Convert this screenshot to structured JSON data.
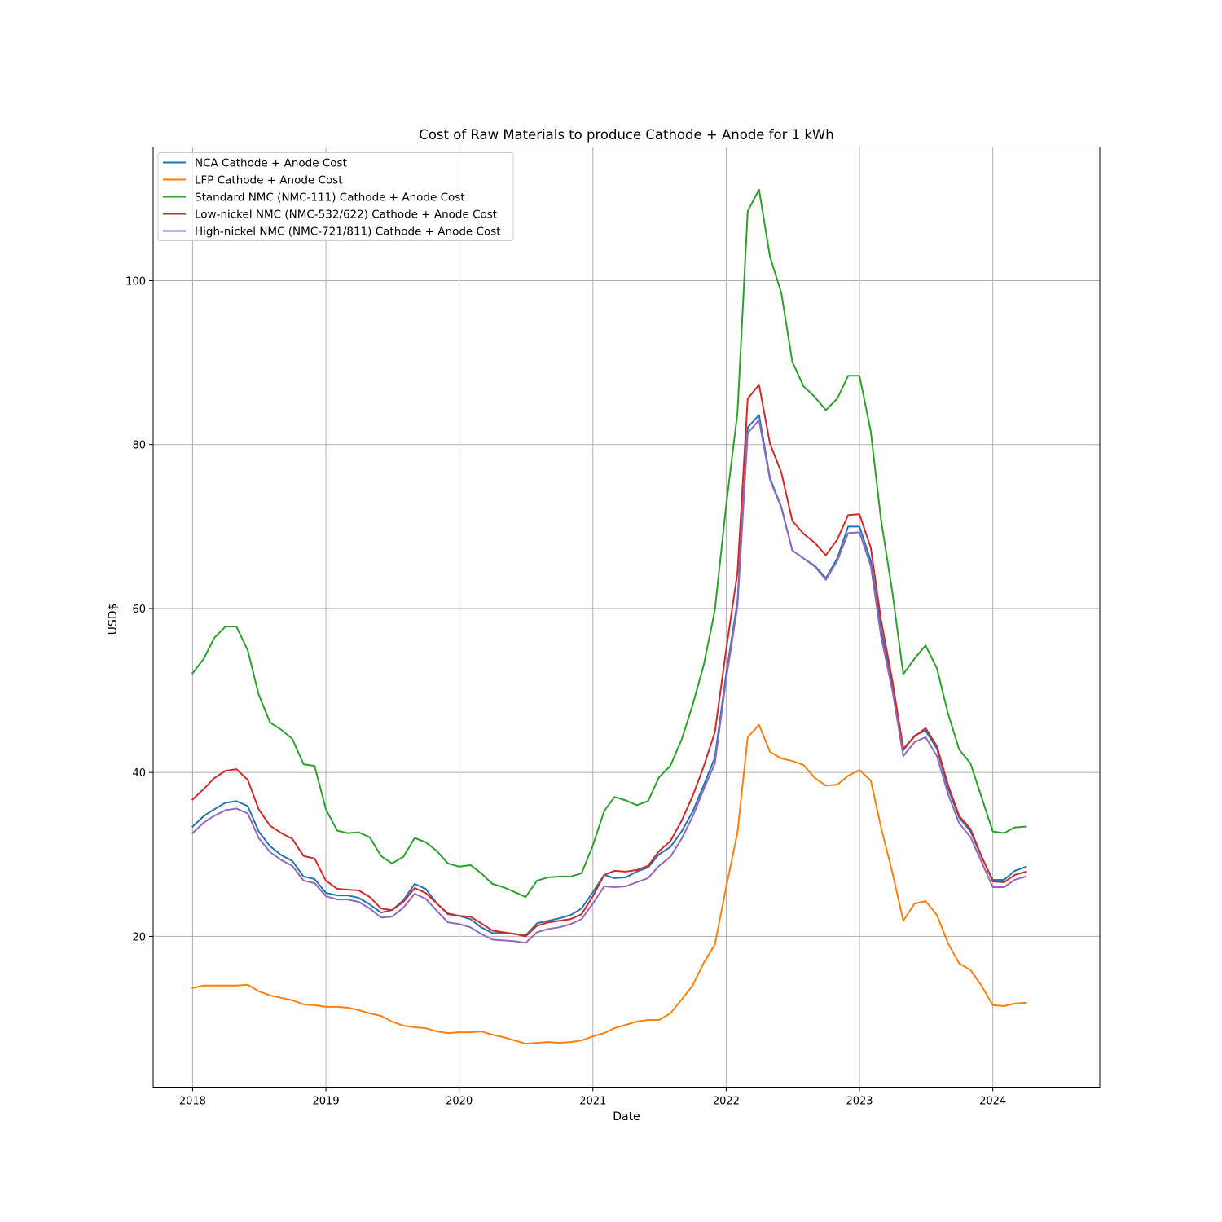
{
  "chart_data": {
    "type": "line",
    "title": "Cost of Raw Materials to produce Cathode + Anode for 1 kWh",
    "xlabel": "Date",
    "ylabel": "USD$",
    "x_start": "2018-01",
    "x_step": "1 month",
    "x_ticks": [
      "2018",
      "2019",
      "2020",
      "2021",
      "2022",
      "2023",
      "2024"
    ],
    "xlim": [
      "2017-09-15",
      "2024-10-20"
    ],
    "y_ticks": [
      20,
      40,
      60,
      80,
      100
    ],
    "ylim": [
      1.6,
      116.3
    ],
    "grid": true,
    "legend_position": "upper left",
    "series": [
      {
        "name": "NCA Cathode + Anode Cost",
        "color": "#1f77b4",
        "values": [
          33.4,
          34.7,
          35.5,
          36.3,
          36.5,
          35.9,
          32.8,
          31.0,
          29.9,
          29.2,
          27.3,
          27.0,
          25.3,
          25.0,
          25.0,
          24.7,
          23.9,
          22.9,
          23.2,
          24.4,
          26.4,
          25.8,
          24.0,
          22.7,
          22.5,
          22.1,
          21.1,
          20.4,
          20.4,
          20.3,
          20.1,
          21.6,
          21.9,
          22.2,
          22.6,
          23.4,
          25.4,
          27.5,
          27.1,
          27.2,
          27.9,
          28.4,
          30.0,
          30.9,
          32.8,
          35.2,
          38.5,
          41.8,
          52.0,
          60.9,
          82.1,
          83.6,
          75.9,
          72.4,
          67.1,
          66.1,
          65.2,
          63.7,
          66.1,
          70.0,
          70.0,
          65.8,
          57.4,
          50.5,
          42.7,
          44.5,
          45.1,
          42.9,
          38.0,
          34.5,
          32.8,
          29.7,
          26.9,
          26.9,
          28.0,
          28.5
        ]
      },
      {
        "name": "LFP Cathode + Anode Cost",
        "color": "#ff7f0e",
        "values": [
          13.7,
          14.0,
          14.0,
          14.0,
          14.0,
          14.1,
          13.3,
          12.8,
          12.5,
          12.2,
          11.7,
          11.6,
          11.4,
          11.4,
          11.3,
          11.0,
          10.6,
          10.3,
          9.6,
          9.1,
          8.9,
          8.8,
          8.4,
          8.2,
          8.3,
          8.3,
          8.4,
          8.0,
          7.7,
          7.3,
          6.9,
          7.0,
          7.1,
          7.0,
          7.1,
          7.3,
          7.8,
          8.2,
          8.8,
          9.2,
          9.6,
          9.8,
          9.8,
          10.6,
          12.3,
          14.0,
          16.8,
          19.0,
          26.0,
          32.7,
          44.3,
          45.8,
          42.5,
          41.7,
          41.4,
          40.9,
          39.3,
          38.4,
          38.5,
          39.6,
          40.3,
          39.0,
          33.3,
          27.8,
          21.9,
          24.0,
          24.3,
          22.6,
          19.1,
          16.7,
          15.9,
          14.0,
          11.6,
          11.5,
          11.8,
          11.9
        ]
      },
      {
        "name": "Standard NMC (NMC-111) Cathode + Anode Cost",
        "color": "#2ca02c",
        "values": [
          52.1,
          53.9,
          56.4,
          57.8,
          57.8,
          54.9,
          49.5,
          46.1,
          45.2,
          44.1,
          41.0,
          40.8,
          35.5,
          32.9,
          32.6,
          32.7,
          32.1,
          29.8,
          28.9,
          29.7,
          32.0,
          31.5,
          30.4,
          28.9,
          28.5,
          28.7,
          27.7,
          26.4,
          26.0,
          25.4,
          24.8,
          26.8,
          27.2,
          27.3,
          27.3,
          27.7,
          31.1,
          35.3,
          37.0,
          36.6,
          36.0,
          36.5,
          39.4,
          40.8,
          44.0,
          48.2,
          53.2,
          59.8,
          72.6,
          83.9,
          108.5,
          111.1,
          102.9,
          98.5,
          90.1,
          87.1,
          85.8,
          84.2,
          85.6,
          88.4,
          88.4,
          81.6,
          70.8,
          62.0,
          52.0,
          53.9,
          55.5,
          52.7,
          47.1,
          42.8,
          41.1,
          37.0,
          32.8,
          32.6,
          33.3,
          33.4
        ]
      },
      {
        "name": "Low-nickel NMC (NMC-532/622) Cathode + Anode Cost",
        "color": "#d62728",
        "values": [
          36.7,
          38.0,
          39.3,
          40.2,
          40.4,
          39.1,
          35.5,
          33.5,
          32.6,
          31.9,
          29.8,
          29.5,
          26.8,
          25.8,
          25.7,
          25.6,
          24.8,
          23.4,
          23.2,
          24.2,
          25.9,
          25.3,
          24.0,
          22.8,
          22.5,
          22.4,
          21.6,
          20.7,
          20.5,
          20.3,
          20.0,
          21.3,
          21.7,
          21.9,
          22.1,
          22.7,
          24.9,
          27.5,
          28.0,
          27.9,
          28.1,
          28.6,
          30.4,
          31.6,
          34.1,
          37.1,
          40.8,
          44.9,
          55.0,
          64.4,
          85.6,
          87.3,
          80.1,
          76.6,
          70.7,
          69.1,
          68.0,
          66.5,
          68.4,
          71.4,
          71.5,
          67.4,
          58.6,
          51.2,
          42.9,
          44.4,
          45.4,
          43.2,
          38.4,
          34.7,
          33.1,
          29.8,
          26.7,
          26.6,
          27.5,
          27.9
        ]
      },
      {
        "name": "High-nickel NMC (NMC-721/811) Cathode + Anode Cost",
        "color": "#9467bd",
        "values": [
          32.6,
          33.9,
          34.7,
          35.4,
          35.6,
          35.0,
          32.0,
          30.3,
          29.3,
          28.6,
          26.8,
          26.5,
          24.9,
          24.5,
          24.5,
          24.2,
          23.4,
          22.3,
          22.4,
          23.5,
          25.2,
          24.6,
          23.1,
          21.7,
          21.5,
          21.1,
          20.3,
          19.6,
          19.5,
          19.4,
          19.2,
          20.5,
          20.9,
          21.1,
          21.5,
          22.1,
          24.0,
          26.1,
          26.0,
          26.1,
          26.6,
          27.1,
          28.6,
          29.7,
          31.9,
          34.6,
          38.0,
          41.1,
          51.4,
          60.3,
          81.4,
          83.0,
          75.7,
          72.3,
          67.1,
          66.1,
          65.1,
          63.5,
          65.8,
          69.2,
          69.3,
          65.2,
          56.6,
          50.0,
          42.0,
          43.7,
          44.3,
          42.0,
          37.3,
          33.8,
          32.1,
          29.1,
          26.0,
          26.0,
          26.9,
          27.3
        ]
      }
    ]
  }
}
